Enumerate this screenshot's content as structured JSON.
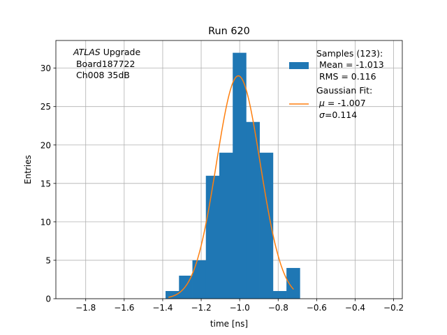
{
  "colors": {
    "bar": "#1f77b4",
    "fit": "#ff7f0e",
    "grid": "#b0b0b0",
    "axis": "#000000"
  },
  "chart_data": {
    "type": "bar",
    "title": "Run 620",
    "xlabel": "time [ns]",
    "ylabel": "Entries",
    "xlim": [
      -1.955,
      -0.155
    ],
    "ylim": [
      0,
      33.6
    ],
    "grid": true,
    "xticks": [
      -1.8,
      -1.6,
      -1.4,
      -1.2,
      -1.0,
      -0.8,
      -0.6,
      -0.4,
      -0.2
    ],
    "xtick_labels": [
      "−1.8",
      "−1.6",
      "−1.4",
      "−1.2",
      "−1.0",
      "−0.8",
      "−0.6",
      "−0.4",
      "−0.2"
    ],
    "yticks": [
      0,
      5,
      10,
      15,
      20,
      25,
      30
    ],
    "ytick_labels": [
      "0",
      "5",
      "10",
      "15",
      "20",
      "25",
      "30"
    ],
    "annotation": {
      "italic": "ATLAS",
      "line1_rest": " Upgrade",
      "line2": " Board187722",
      "line3": " Ch008 35dB"
    },
    "legend": {
      "placement": "top-right",
      "samples": [
        "Samples (123):",
        " Mean = -1.013",
        " RMS = 0.116"
      ],
      "fit_title": "Gaussian Fit:",
      "fit_mu_sym": "μ",
      "fit_mu_val": " = -1.007",
      "fit_sigma_sym": "σ",
      "fit_sigma_val": "=0.114"
    },
    "histogram": {
      "bin_edges": [
        -1.3851,
        -1.3153,
        -1.2455,
        -1.1757,
        -1.1059,
        -1.0361,
        -0.9663,
        -0.8965,
        -0.8267,
        -0.7569,
        -0.6871
      ],
      "counts": [
        1,
        3,
        5,
        16,
        19,
        32,
        23,
        19,
        1,
        4
      ]
    },
    "fit": {
      "amplitude": 29.0,
      "mu": -1.007,
      "sigma": 0.114,
      "x_range": [
        -1.37,
        -0.72
      ]
    }
  }
}
